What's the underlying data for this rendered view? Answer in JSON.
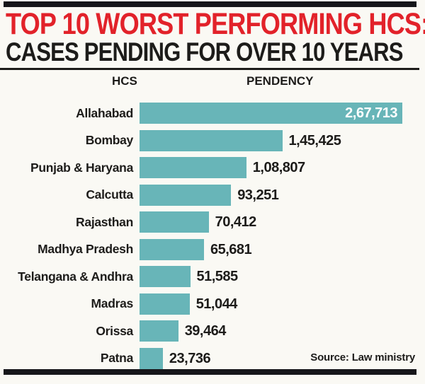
{
  "header": {
    "title_line1": "TOP 10 WORST PERFORMING HCS:",
    "title_line2": "CASES PENDING FOR OVER 10 YEARS"
  },
  "columns": {
    "hcs": "HCS",
    "pendency": "PENDENCY"
  },
  "source": "Source: Law ministry",
  "colors": {
    "background": "#faf9f4",
    "bar": "#68b5b8",
    "title_red": "#e2222a",
    "text_black": "#1d1c1a",
    "inside_value_text": "#ffffff"
  },
  "chart_data": {
    "type": "bar",
    "orientation": "horizontal",
    "title": "TOP 10 WORST PERFORMING HCS: CASES PENDING FOR OVER 10 YEARS",
    "xlabel": "PENDENCY",
    "ylabel": "HCS",
    "xlim": [
      0,
      267713
    ],
    "grid": false,
    "legend": false,
    "categories": [
      "Allahabad",
      "Bombay",
      "Punjab & Haryana",
      "Calcutta",
      "Rajasthan",
      "Madhya Pradesh",
      "Telangana & Andhra",
      "Madras",
      "Orissa",
      "Patna"
    ],
    "values": [
      267713,
      145425,
      108807,
      93251,
      70412,
      65681,
      51585,
      51044,
      39464,
      23736
    ],
    "value_labels": [
      "2,67,713",
      "1,45,425",
      "1,08,807",
      "93,251",
      "70,412",
      "65,681",
      "51,585",
      "51,044",
      "39,464",
      "23,736"
    ],
    "source": "Source: Law ministry"
  }
}
